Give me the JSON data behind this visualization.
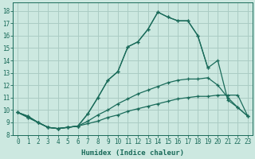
{
  "background_color": "#cce8e0",
  "grid_color": "#aaccc4",
  "line_color": "#1a6b5a",
  "xlabel": "Humidex (Indice chaleur)",
  "xlim": [
    -0.5,
    23.5
  ],
  "ylim": [
    8.0,
    18.7
  ],
  "xticks": [
    0,
    1,
    2,
    3,
    4,
    5,
    6,
    7,
    8,
    9,
    10,
    11,
    12,
    13,
    14,
    15,
    16,
    17,
    18,
    19,
    20,
    21,
    22,
    23
  ],
  "yticks": [
    8,
    9,
    10,
    11,
    12,
    13,
    14,
    15,
    16,
    17,
    18
  ],
  "lines": [
    {
      "x": [
        0,
        1,
        2,
        3,
        4,
        5,
        6,
        7,
        8,
        9,
        10,
        11,
        12,
        13,
        14,
        15,
        16,
        17,
        18,
        19
      ],
      "y": [
        9.8,
        9.5,
        9.0,
        8.6,
        8.5,
        8.6,
        8.7,
        9.7,
        11.0,
        12.4,
        13.1,
        15.1,
        15.5,
        16.5,
        17.9,
        17.5,
        17.2,
        17.2,
        16.0,
        13.4
      ]
    },
    {
      "x": [
        0,
        1,
        2,
        3,
        4,
        5,
        6,
        7,
        8,
        9,
        10,
        11,
        12,
        13,
        14,
        15,
        16,
        17,
        18,
        19,
        20,
        21,
        22,
        23
      ],
      "y": [
        9.8,
        9.5,
        9.0,
        8.6,
        8.5,
        8.6,
        8.7,
        9.7,
        11.0,
        12.4,
        13.1,
        15.1,
        15.5,
        16.5,
        17.9,
        17.5,
        17.2,
        17.2,
        16.0,
        13.4,
        14.0,
        10.8,
        10.2,
        9.5
      ]
    },
    {
      "x": [
        0,
        1,
        2,
        3,
        4,
        5,
        6,
        7,
        8,
        9,
        10,
        11,
        12,
        13,
        14,
        15,
        16,
        17,
        18,
        19,
        20,
        21,
        22,
        23
      ],
      "y": [
        9.8,
        9.4,
        9.0,
        8.6,
        8.5,
        8.6,
        8.7,
        9.1,
        9.6,
        10.0,
        10.5,
        10.9,
        11.3,
        11.6,
        11.9,
        12.2,
        12.4,
        12.5,
        12.5,
        12.6,
        12.0,
        11.0,
        10.2,
        9.5
      ]
    },
    {
      "x": [
        0,
        1,
        2,
        3,
        4,
        5,
        6,
        7,
        8,
        9,
        10,
        11,
        12,
        13,
        14,
        15,
        16,
        17,
        18,
        19,
        20,
        21,
        22,
        23
      ],
      "y": [
        9.8,
        9.4,
        9.0,
        8.6,
        8.5,
        8.6,
        8.7,
        8.9,
        9.1,
        9.4,
        9.6,
        9.9,
        10.1,
        10.3,
        10.5,
        10.7,
        10.9,
        11.0,
        11.1,
        11.1,
        11.2,
        11.2,
        11.2,
        9.5
      ]
    }
  ]
}
